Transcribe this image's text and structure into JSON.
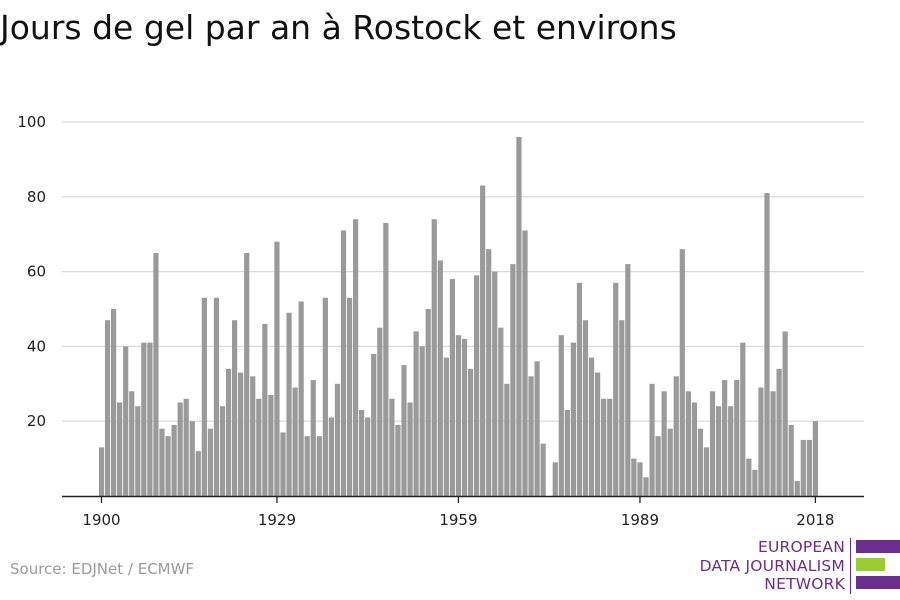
{
  "title": "Jours de gel par an à Rostock et environs",
  "source": "Source: EDJNet / ECMWF",
  "logo": {
    "lines": [
      "EUROPEAN",
      "DATA JOURNALISM",
      "NETWORK"
    ],
    "colors": [
      "#6b2d8e",
      "#9acd32",
      "#6b2d8e"
    ]
  },
  "colors": {
    "bar": "#9a9a9a",
    "grid": "#d9d9d9",
    "axis": "#222222",
    "logo_purple": "#6b2d8e",
    "logo_green": "#9acd32"
  },
  "chart_data": {
    "type": "bar",
    "title": "Jours de gel par an à Rostock et environs",
    "xlabel": "",
    "ylabel": "",
    "x_start": 1900,
    "x_end": 2018,
    "x_ticks": [
      1900,
      1929,
      1959,
      1989,
      2018
    ],
    "y_ticks": [
      20,
      40,
      60,
      80,
      100
    ],
    "ylim": [
      0,
      100
    ],
    "grid": true,
    "values": [
      13,
      47,
      50,
      25,
      40,
      28,
      24,
      41,
      41,
      65,
      18,
      16,
      19,
      25,
      26,
      20,
      12,
      53,
      18,
      53,
      24,
      34,
      47,
      33,
      65,
      32,
      26,
      46,
      27,
      68,
      17,
      49,
      29,
      52,
      16,
      31,
      16,
      53,
      21,
      30,
      71,
      53,
      74,
      23,
      21,
      38,
      45,
      73,
      26,
      19,
      35,
      25,
      44,
      40,
      50,
      74,
      63,
      37,
      58,
      43,
      42,
      34,
      59,
      83,
      66,
      60,
      45,
      30,
      62,
      96,
      71,
      32,
      36,
      14,
      0,
      9,
      43,
      23,
      41,
      57,
      47,
      37,
      33,
      26,
      26,
      57,
      47,
      62,
      10,
      9,
      5,
      30,
      16,
      28,
      18,
      32,
      66,
      28,
      25,
      18,
      13,
      28,
      24,
      31,
      24,
      31,
      41,
      10,
      7,
      29,
      81,
      28,
      34,
      44,
      19,
      4,
      15,
      15,
      20
    ]
  }
}
